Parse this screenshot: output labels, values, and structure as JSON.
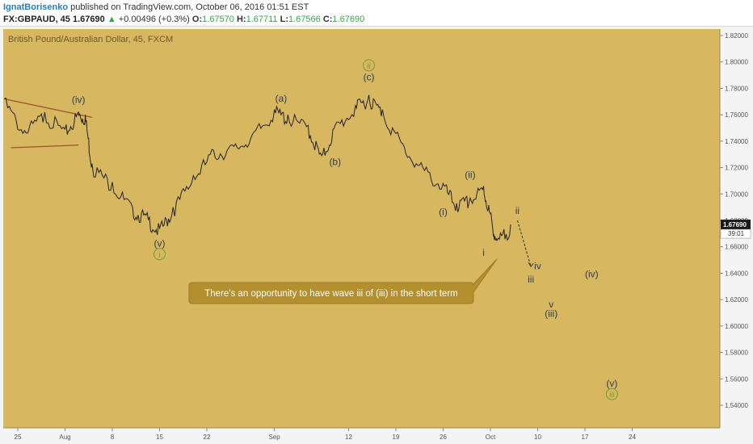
{
  "header": {
    "author": "IgnatBorisenko",
    "published": "published on TradingView.com, October 06, 2016 01:51 EST",
    "symbol": "FX:GBPAUD, 45",
    "last": "1.67690",
    "change": "+0.00496 (+0.3%)",
    "o_label": "O:",
    "o": "1.67570",
    "h_label": "H:",
    "h": "1.67711",
    "l_label": "L:",
    "l": "1.67566",
    "c_label": "C:",
    "c": "1.67690",
    "up_icon": "triangle-up-icon"
  },
  "colors": {
    "background": "#d7b75f",
    "wave_text": "#2c3e50",
    "circle_label": "#7a9a3a",
    "trendline": "#a0522d",
    "price_badge": "#1a1a1a"
  },
  "chart_data": {
    "type": "line",
    "title": "British Pound/Australian Dollar, 45, FXCM",
    "x_tick_labels": [
      "25",
      "Aug",
      "8",
      "15",
      "22",
      "Sep",
      "12",
      "19",
      "26",
      "Oct",
      "10",
      "17",
      "24"
    ],
    "y_tick_labels": [
      "1.82000",
      "1.80000",
      "1.78000",
      "1.76000",
      "1.74000",
      "1.72000",
      "1.70000",
      "1.68000",
      "1.66000",
      "1.64000",
      "1.62000",
      "1.60000",
      "1.58000",
      "1.56000",
      "1.54000"
    ],
    "ylim": [
      1.53,
      1.825
    ],
    "last_price": "1.67690",
    "countdown": "39:01",
    "series": [
      {
        "x": [
          "Jul 23",
          "Jul 26",
          "Jul 29",
          "Aug 1",
          "Aug 3",
          "Aug 4",
          "Aug 5",
          "Aug 8",
          "Aug 11",
          "Aug 13",
          "Aug 15",
          "Aug 17",
          "Aug 20",
          "Aug 23",
          "Aug 26",
          "Aug 29",
          "Sep 1",
          "Sep 3",
          "Sep 6",
          "Sep 8",
          "Sep 10",
          "Sep 13",
          "Sep 15",
          "Sep 17",
          "Sep 20",
          "Sep 23",
          "Sep 26",
          "Sep 28",
          "Sep 30",
          "Oct 2",
          "Oct 3",
          "Oct 4",
          "Oct 6"
        ],
        "values": [
          1.772,
          1.748,
          1.762,
          1.749,
          1.762,
          1.76,
          1.723,
          1.709,
          1.69,
          1.684,
          1.674,
          1.69,
          1.714,
          1.733,
          1.736,
          1.747,
          1.764,
          1.76,
          1.752,
          1.729,
          1.752,
          1.767,
          1.775,
          1.764,
          1.738,
          1.72,
          1.708,
          1.693,
          1.697,
          1.706,
          1.685,
          1.665,
          1.677
        ]
      }
    ],
    "projection": {
      "x": [
        "Oct 7",
        "Oct 9"
      ],
      "values": [
        1.68,
        1.645
      ]
    },
    "triangle_upper": {
      "x": [
        "Jul 23",
        "Aug 5"
      ],
      "values": [
        1.772,
        1.758
      ]
    },
    "triangle_lower": {
      "x": [
        "Jul 24",
        "Aug 3"
      ],
      "values": [
        1.735,
        1.737
      ]
    },
    "callout_pointer_to": {
      "x": "Oct 4",
      "value": 1.651
    },
    "wave_labels": [
      {
        "text": "(iv)",
        "x": "Aug 3",
        "value": 1.769
      },
      {
        "text": "(a)",
        "x": "Sep 2",
        "value": 1.77
      },
      {
        "text": "(c)",
        "x": "Sep 15",
        "value": 1.786
      },
      {
        "text": "(b)",
        "x": "Sep 10",
        "value": 1.722
      },
      {
        "text": "(v)",
        "x": "Aug 15",
        "value": 1.66
      },
      {
        "text": "(i)",
        "x": "Sep 26",
        "value": 1.684
      },
      {
        "text": "(ii)",
        "x": "Sep 30",
        "value": 1.712
      },
      {
        "text": "ii",
        "x": "Oct 7",
        "value": 1.685
      },
      {
        "text": "i",
        "x": "Oct 2",
        "value": 1.653
      },
      {
        "text": "iv",
        "x": "Oct 10",
        "value": 1.643
      },
      {
        "text": "iii",
        "x": "Oct 9",
        "value": 1.633
      },
      {
        "text": "(iv)",
        "x": "Oct 18",
        "value": 1.637
      },
      {
        "text": "v",
        "x": "Oct 12",
        "value": 1.614
      },
      {
        "text": "(iii)",
        "x": "Oct 12",
        "value": 1.607
      },
      {
        "text": "(v)",
        "x": "Oct 21",
        "value": 1.554
      }
    ],
    "circled_labels": [
      {
        "text": "ii",
        "x": "Sep 15",
        "value": 1.795
      },
      {
        "text": "i",
        "x": "Aug 15",
        "value": 1.652
      },
      {
        "text": "iii",
        "x": "Oct 21",
        "value": 1.546
      }
    ],
    "annotation": "There's an opportunity to have wave iii of (iii) in the short term"
  }
}
